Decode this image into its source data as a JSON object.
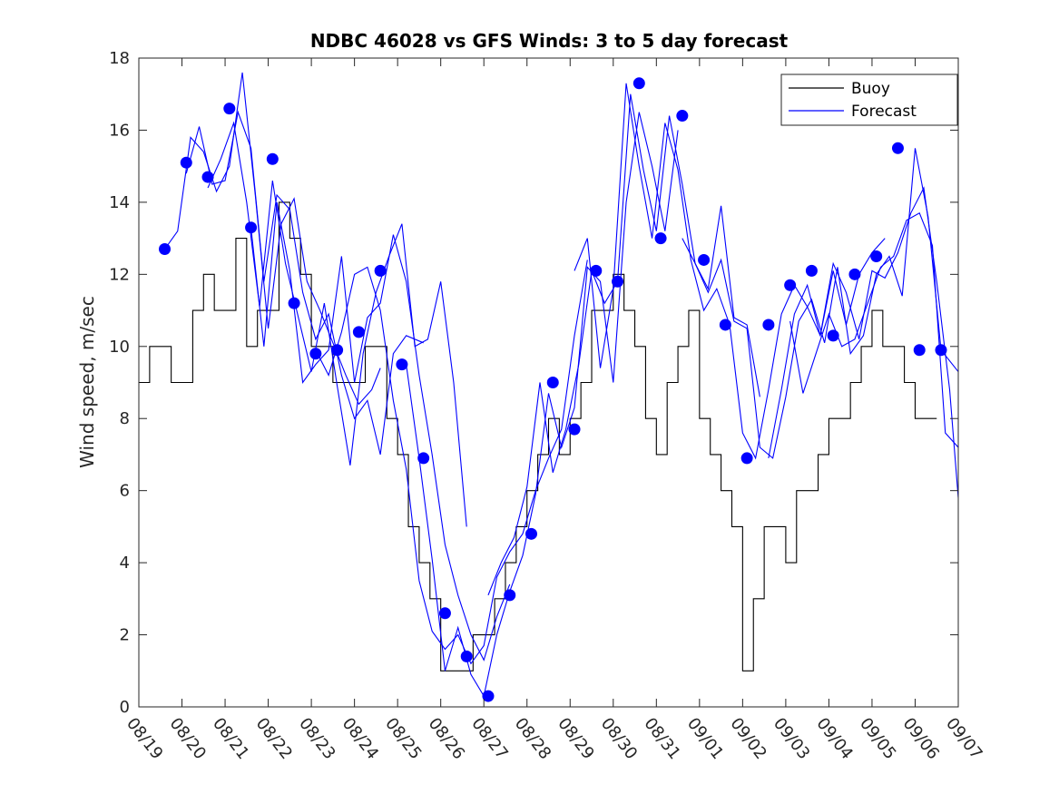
{
  "chart_data": {
    "type": "line",
    "title": "NDBC 46028 vs GFS Winds: 3 to 5 day forecast",
    "xlabel": "",
    "ylabel": "Wind speed, m/sec",
    "ylim": [
      0,
      18
    ],
    "yticks": [
      0,
      2,
      4,
      6,
      8,
      10,
      12,
      14,
      16,
      18
    ],
    "xlim_days": [
      0,
      19
    ],
    "xtick_labels": [
      "08/19",
      "08/20",
      "08/21",
      "08/22",
      "08/23",
      "08/24",
      "08/25",
      "08/26",
      "08/27",
      "08/28",
      "08/29",
      "08/30",
      "08/31",
      "09/01",
      "09/02",
      "09/03",
      "09/04",
      "09/05",
      "09/06",
      "09/07"
    ],
    "grid": false,
    "legend_position": "top-right",
    "colors": {
      "buoy": "#000000",
      "forecast": "#0000ff",
      "axis": "#262626"
    },
    "series": [
      {
        "name": "Buoy",
        "x_days": [
          0.0,
          0.25,
          0.5,
          0.75,
          1.0,
          1.25,
          1.5,
          1.75,
          2.0,
          2.25,
          2.5,
          2.75,
          3.0,
          3.25,
          3.5,
          3.75,
          4.0,
          4.25,
          4.5,
          4.75,
          5.0,
          5.25,
          5.5,
          5.75,
          6.0,
          6.25,
          6.5,
          6.75,
          7.0,
          7.25,
          7.5,
          7.75,
          8.0,
          8.25,
          8.5,
          8.75,
          9.0,
          9.25,
          9.5,
          9.75,
          10.0,
          10.25,
          10.5,
          10.75,
          11.0,
          11.25,
          11.5,
          11.75,
          12.0,
          12.25,
          12.5,
          12.75,
          13.0,
          13.25,
          13.5,
          13.75,
          14.0,
          14.25,
          14.5,
          14.75,
          15.0,
          15.25,
          15.5,
          15.75,
          16.0,
          16.25,
          16.5,
          16.75,
          17.0,
          17.25,
          17.5,
          17.75,
          18.0,
          18.25
        ],
        "values": [
          9,
          10,
          10,
          9,
          9,
          11,
          12,
          11,
          11,
          13,
          10,
          11,
          11,
          14,
          13,
          12,
          10,
          10,
          9,
          9,
          9,
          10,
          10,
          8,
          7,
          5,
          4,
          3,
          1,
          1,
          1,
          2,
          2,
          3,
          4,
          5,
          6,
          7,
          8,
          7,
          8,
          9,
          11,
          11,
          12,
          11,
          10,
          8,
          7,
          9,
          10,
          11,
          8,
          7,
          6,
          5,
          1,
          3,
          5,
          5,
          4,
          6,
          6,
          7,
          8,
          8,
          9,
          10,
          11,
          10,
          10,
          9,
          8,
          8
        ]
      },
      {
        "name": "Forecast",
        "points_label": "GFS forecast runs (3 to 5 day lead)",
        "runs": [
          {
            "x_days": [
              0.6,
              0.9,
              1.2,
              1.5,
              1.8,
              2.1,
              2.4,
              2.7,
              3.0,
              3.3,
              3.6,
              3.9,
              4.2,
              4.5,
              4.8,
              5.1,
              5.4,
              5.6
            ],
            "values": [
              12.7,
              13.2,
              15.8,
              15.4,
              14.3,
              15.0,
              17.6,
              14.2,
              10.5,
              13.4,
              14.1,
              11.8,
              11.0,
              10.1,
              9.2,
              8.4,
              8.8,
              9.4
            ]
          },
          {
            "x_days": [
              1.1,
              1.4,
              1.7,
              2.0,
              2.3,
              2.6,
              2.9,
              3.2,
              3.5,
              3.8,
              4.1,
              4.4,
              4.7,
              5.0,
              5.3,
              5.6,
              5.9,
              6.2,
              6.6
            ],
            "values": [
              14.8,
              16.1,
              14.5,
              14.6,
              16.5,
              15.5,
              11.8,
              14.2,
              13.8,
              11.5,
              10.2,
              10.9,
              9.2,
              8.0,
              8.5,
              7.0,
              9.8,
              10.3,
              10.1
            ]
          },
          {
            "x_days": [
              1.6,
              1.9,
              2.2,
              2.5,
              2.8,
              3.1,
              3.4,
              3.7,
              4.0,
              4.3,
              4.6,
              4.9,
              5.2,
              5.5,
              5.8,
              6.1,
              6.4,
              6.7,
              7.0,
              7.3,
              7.6
            ],
            "values": [
              14.4,
              15.2,
              16.2,
              14.0,
              11.1,
              14.6,
              12.3,
              10.8,
              9.3,
              11.2,
              8.9,
              6.7,
              9.8,
              11.5,
              12.5,
              13.4,
              10.0,
              10.2,
              11.8,
              9.0,
              5.0
            ]
          },
          {
            "x_days": [
              2.6,
              2.9,
              3.2,
              3.5,
              3.8,
              4.1,
              4.4,
              4.7,
              5.0,
              5.3,
              5.6,
              5.9,
              6.2,
              6.5,
              6.8,
              7.1,
              7.4,
              7.7,
              8.0,
              8.3,
              8.6
            ],
            "values": [
              13.3,
              10.0,
              14.0,
              12.1,
              9.0,
              9.5,
              9.9,
              12.5,
              9.0,
              10.8,
              11.2,
              13.1,
              11.8,
              9.2,
              7.0,
              4.5,
              3.1,
              2.0,
              1.3,
              2.5,
              3.4
            ]
          },
          {
            "x_days": [
              4.1,
              4.4,
              4.7,
              5.0,
              5.3,
              5.6,
              5.9,
              6.2,
              6.5,
              6.8,
              7.1,
              7.4,
              7.7,
              8.0,
              8.3,
              8.6,
              8.9,
              9.2,
              9.5,
              9.8,
              10.1,
              10.4
            ],
            "values": [
              9.9,
              9.2,
              10.4,
              12.0,
              12.2,
              11.0,
              8.5,
              6.6,
              3.5,
              2.1,
              1.6,
              2.0,
              1.2,
              1.7,
              3.6,
              4.3,
              4.8,
              6.0,
              6.9,
              7.7,
              10.3,
              12.4
            ]
          },
          {
            "x_days": [
              6.2,
              6.5,
              6.8,
              7.1,
              7.4,
              7.7,
              8.0,
              8.3,
              8.6,
              8.9,
              9.2,
              9.5,
              9.8,
              10.1,
              10.4,
              10.7,
              11.0,
              11.3,
              11.6,
              11.9,
              12.2,
              12.5
            ],
            "values": [
              9.5,
              6.9,
              4.1,
              1.0,
              2.2,
              0.9,
              0.3,
              2.0,
              3.2,
              4.2,
              5.9,
              8.7,
              7.2,
              8.3,
              12.2,
              11.8,
              9.0,
              14.0,
              16.5,
              15.0,
              13.2,
              16.0
            ]
          },
          {
            "x_days": [
              8.1,
              8.4,
              8.7,
              9.0,
              9.3,
              9.6,
              9.9,
              10.2,
              10.5,
              10.8,
              11.1,
              11.4,
              11.7,
              12.0,
              12.3,
              12.6,
              12.9,
              13.2,
              13.5,
              13.8,
              14.1,
              14.4
            ],
            "values": [
              3.1,
              4.0,
              4.7,
              6.1,
              9.0,
              6.5,
              7.7,
              9.5,
              12.1,
              11.2,
              11.8,
              17.0,
              14.9,
              13.2,
              16.4,
              14.5,
              12.3,
              11.6,
              13.9,
              10.8,
              10.6,
              8.6
            ]
          },
          {
            "x_days": [
              10.1,
              10.4,
              10.7,
              11.0,
              11.3,
              11.6,
              11.9,
              12.2,
              12.5,
              12.8,
              13.1,
              13.4,
              13.7,
              14.0,
              14.3,
              14.6,
              14.9,
              15.2,
              15.5,
              15.8,
              16.1,
              16.4,
              16.7,
              17.0,
              17.3
            ],
            "values": [
              12.1,
              13.0,
              9.4,
              11.6,
              17.3,
              15.0,
              13.0,
              16.2,
              14.9,
              12.4,
              11.0,
              11.6,
              10.6,
              7.6,
              6.9,
              8.8,
              10.9,
              11.7,
              11.1,
              10.3,
              12.1,
              10.6,
              12.0,
              12.6,
              13.0
            ]
          },
          {
            "x_days": [
              12.6,
              12.9,
              13.2,
              13.5,
              13.8,
              14.1,
              14.4,
              14.7,
              15.0,
              15.3,
              15.6,
              15.9,
              16.2,
              16.5,
              16.8,
              17.1,
              17.4,
              17.7,
              18.0,
              18.3,
              18.6,
              19.0
            ],
            "values": [
              13.0,
              12.3,
              11.5,
              12.4,
              10.7,
              10.5,
              7.2,
              6.9,
              8.6,
              10.7,
              11.3,
              10.1,
              12.2,
              9.8,
              10.3,
              12.0,
              12.5,
              11.4,
              15.5,
              13.6,
              9.9,
              9.3
            ]
          },
          {
            "x_days": [
              14.6,
              14.9,
              15.2,
              15.5,
              15.8,
              16.1,
              16.4,
              16.7,
              17.0,
              17.3,
              17.6,
              17.9,
              18.2,
              18.5,
              18.8,
              19.0
            ],
            "values": [
              6.9,
              8.8,
              10.9,
              11.7,
              10.3,
              12.3,
              11.5,
              10.2,
              12.1,
              11.9,
              12.6,
              13.7,
              14.4,
              11.8,
              8.8,
              5.8
            ]
          },
          {
            "x_days": [
              15.1,
              15.4,
              15.7,
              16.0,
              16.3,
              16.6,
              16.9,
              17.2,
              17.5,
              17.8,
              18.1,
              18.4,
              18.7,
              19.0
            ],
            "values": [
              10.7,
              8.7,
              9.8,
              10.9,
              10.0,
              10.2,
              11.2,
              12.2,
              12.5,
              13.5,
              13.7,
              12.8,
              7.6,
              7.2
            ]
          }
        ],
        "marker_points": {
          "x_days": [
            0.6,
            1.1,
            1.6,
            2.1,
            2.6,
            3.1,
            3.6,
            4.1,
            4.6,
            5.1,
            5.6,
            6.1,
            6.6,
            7.1,
            7.6,
            8.1,
            8.6,
            9.1,
            9.6,
            10.1,
            10.6,
            11.1,
            11.6,
            12.1,
            12.6,
            13.1,
            13.6,
            14.1,
            14.6,
            15.1,
            15.6,
            16.1,
            16.6,
            17.1,
            17.6,
            18.1,
            18.6
          ],
          "values": [
            12.7,
            15.1,
            14.7,
            16.6,
            13.3,
            15.2,
            11.2,
            9.8,
            9.9,
            10.4,
            12.1,
            9.5,
            6.9,
            2.6,
            1.4,
            0.3,
            3.1,
            4.8,
            9.0,
            7.7,
            12.1,
            11.8,
            17.3,
            13.0,
            16.4,
            12.4,
            10.6,
            6.9,
            10.6,
            11.7,
            12.1,
            10.3,
            12.0,
            12.5,
            15.5,
            9.9,
            9.9
          ]
        }
      }
    ]
  },
  "legend": {
    "items": [
      {
        "label": "Buoy",
        "color": "#000000"
      },
      {
        "label": "Forecast",
        "color": "#0000ff"
      }
    ]
  }
}
